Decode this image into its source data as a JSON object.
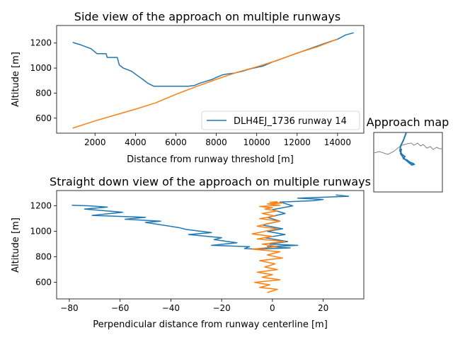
{
  "colors": {
    "series_blue": "#1f77b4",
    "series_orange": "#ff7f0e",
    "map_line": "#808080",
    "legend_border": "#cccccc"
  },
  "chart_data": [
    {
      "type": "line",
      "title": "Side view of the approach on multiple runways",
      "xlabel": "Distance from runway threshold [m]",
      "ylabel": "Altitude [m]",
      "xlim": [
        100,
        15300
      ],
      "ylim": [
        480,
        1340
      ],
      "xticks": [
        2000,
        4000,
        6000,
        8000,
        10000,
        12000,
        14000
      ],
      "xtick_labels": [
        "2000",
        "4000",
        "6000",
        "8000",
        "10000",
        "12000",
        "14000"
      ],
      "yticks": [
        600,
        800,
        1000,
        1200
      ],
      "ytick_labels": [
        "600",
        "800",
        "1000",
        "1200"
      ],
      "legend": {
        "position": "lower-right",
        "entries": [
          {
            "label": "DLH4EJ_1736 runway 14",
            "color": "#1f77b4"
          }
        ]
      },
      "series": [
        {
          "name": "DLH4EJ_1736 runway 14",
          "color": "#1f77b4",
          "x": [
            900,
            1300,
            1800,
            2100,
            2200,
            2550,
            2600,
            3100,
            3200,
            3400,
            3800,
            4100,
            4400,
            4600,
            4900,
            6600,
            6900,
            7200,
            7500,
            7800,
            8000,
            8300,
            8500,
            8900,
            9300,
            9700,
            10300,
            10800,
            11500,
            12200,
            12900,
            13600,
            14000,
            14400,
            14800
          ],
          "y": [
            1205,
            1185,
            1155,
            1115,
            1115,
            1115,
            1085,
            1085,
            1025,
            1000,
            975,
            940,
            905,
            880,
            855,
            855,
            860,
            880,
            895,
            910,
            925,
            945,
            952,
            960,
            975,
            995,
            1015,
            1050,
            1090,
            1130,
            1170,
            1210,
            1230,
            1265,
            1282
          ]
        },
        {
          "name": "",
          "color": "#ff7f0e",
          "x": [
            900,
            2000,
            3000,
            4000,
            5000,
            6000,
            7000,
            8000,
            9000,
            10000,
            11000,
            12000,
            13000,
            14000
          ],
          "y": [
            520,
            578,
            625,
            672,
            722,
            790,
            852,
            910,
            965,
            1010,
            1060,
            1120,
            1170,
            1232
          ]
        }
      ]
    },
    {
      "type": "line",
      "title": "Straight down view of the approach on multiple runways",
      "xlabel": "Perpendicular distance from runway centerline [m]",
      "ylabel": "Altitude [m]",
      "xlim": [
        -85,
        36
      ],
      "ylim": [
        470,
        1320
      ],
      "xticks": [
        -80,
        -60,
        -40,
        -20,
        0,
        20
      ],
      "xtick_labels": [
        "−80",
        "−60",
        "−40",
        "−20",
        "0",
        "20"
      ],
      "yticks": [
        600,
        800,
        1000,
        1200
      ],
      "ytick_labels": [
        "600",
        "800",
        "1000",
        "1200"
      ],
      "series": [
        {
          "name": "",
          "color": "#1f77b4",
          "x": [
            -79,
            -72,
            -65,
            -74,
            -59,
            -71,
            -50,
            -58,
            -44,
            -50,
            -37,
            -34,
            -24,
            -33,
            -20,
            -23,
            -14,
            -24,
            -9,
            -11,
            -6,
            0,
            7,
            -2,
            10,
            -1,
            6,
            -3,
            5,
            -2,
            4,
            -4,
            3,
            -2,
            5,
            0,
            8,
            3,
            16,
            20,
            10,
            30,
            25
          ],
          "y": [
            1205,
            1200,
            1190,
            1175,
            1150,
            1125,
            1110,
            1095,
            1080,
            1070,
            1030,
            1015,
            990,
            975,
            950,
            935,
            910,
            890,
            880,
            865,
            860,
            865,
            870,
            880,
            890,
            900,
            920,
            950,
            975,
            1000,
            1020,
            1050,
            1080,
            1110,
            1140,
            1170,
            1200,
            1230,
            1240,
            1250,
            1260,
            1275,
            1285
          ]
        },
        {
          "name": "",
          "color": "#ff7f0e",
          "x": [
            -2,
            2,
            -5,
            -1,
            -7,
            3,
            -4,
            0,
            -6,
            2,
            -3,
            1,
            -5,
            4,
            -2,
            3,
            -8,
            2,
            -4,
            5,
            -6,
            0,
            -8,
            -3,
            2,
            -6,
            -2,
            3,
            -5,
            1,
            -4,
            2,
            -3,
            0,
            -5,
            3,
            -2,
            4,
            -1,
            2
          ],
          "y": [
            520,
            545,
            560,
            580,
            600,
            620,
            640,
            660,
            680,
            700,
            720,
            745,
            770,
            790,
            815,
            840,
            860,
            880,
            900,
            920,
            940,
            960,
            980,
            1000,
            1020,
            1040,
            1060,
            1080,
            1100,
            1120,
            1140,
            1160,
            1175,
            1185,
            1195,
            1205,
            1215,
            1222,
            1228,
            1232
          ]
        }
      ]
    },
    {
      "type": "map",
      "title": "Approach map"
    }
  ]
}
